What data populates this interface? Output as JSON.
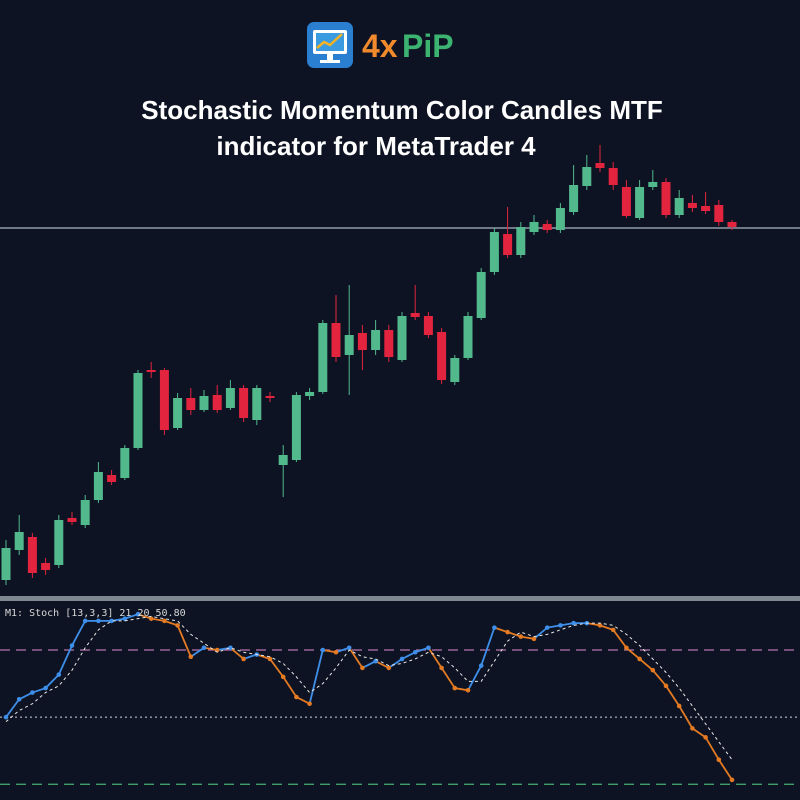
{
  "logo": {
    "prefix": "4x",
    "suffix": "PiP"
  },
  "title_lines": [
    "Stochastic Momentum Color Candles MTF",
    "indicator for MetaTrader 4"
  ],
  "chart_data": [
    {
      "type": "candlestick",
      "ylim": [
        0,
        230
      ],
      "up_color": "#52b98d",
      "down_color": "#e3243f",
      "hline": {
        "value": 181,
        "color": "#8f9aa8"
      },
      "open": [
        5,
        20,
        26.5,
        13.5,
        12.5,
        36,
        32.5,
        45,
        57.5,
        56,
        71,
        110,
        110,
        81,
        96,
        90,
        97.5,
        91,
        101,
        85,
        97,
        62.5,
        65,
        97,
        99,
        133.5,
        117.5,
        128.5,
        120,
        130,
        115,
        138.5,
        137,
        129,
        104,
        116,
        136,
        159,
        178,
        167.5,
        179,
        183,
        180,
        189,
        202,
        213.5,
        211,
        201.5,
        186,
        201.5,
        204,
        187.5,
        193.5,
        192,
        192.5,
        184
      ],
      "high": [
        25,
        37.5,
        28.5,
        16,
        37.5,
        39,
        47.5,
        64,
        60,
        72.5,
        110,
        114,
        111,
        98.5,
        101,
        100,
        102.5,
        105,
        102.5,
        102.5,
        99,
        72.5,
        99,
        101,
        135,
        147.5,
        152.5,
        132.5,
        135,
        132.5,
        139,
        152.5,
        139,
        131,
        117.5,
        139,
        161,
        181,
        191.5,
        184,
        187.5,
        185,
        193.5,
        212.5,
        217.5,
        222.5,
        214,
        205,
        205,
        210,
        206,
        200,
        197.5,
        199,
        195,
        185
      ],
      "low": [
        2.5,
        17.5,
        6,
        7.5,
        11,
        32.5,
        31,
        43.5,
        52.5,
        55,
        70,
        106,
        77.5,
        80,
        87.5,
        89,
        88.5,
        90,
        84,
        82.5,
        94,
        46.5,
        64,
        95,
        98,
        114,
        97.5,
        110,
        117.5,
        114,
        114,
        135,
        126,
        103,
        102.5,
        115,
        135,
        157.5,
        166,
        166,
        177.5,
        178.5,
        178.5,
        187.5,
        200,
        209,
        200,
        186,
        185,
        200,
        186,
        186,
        189,
        188,
        182,
        180
      ],
      "close": [
        21,
        29,
        8.5,
        10,
        35,
        34,
        45,
        59,
        54,
        71,
        108.5,
        109,
        80,
        96,
        90,
        97,
        90,
        101,
        86,
        101,
        96,
        67.5,
        97.5,
        99,
        133.5,
        116.5,
        127.5,
        120,
        130,
        116.5,
        137,
        136.5,
        127.5,
        105,
        116,
        137,
        159,
        179,
        167.5,
        181.5,
        184,
        180,
        191,
        202.5,
        211.5,
        211,
        202.5,
        187,
        201.5,
        204,
        187.5,
        196,
        191,
        189.5,
        184,
        181.5
      ]
    },
    {
      "type": "line",
      "label": "M1: Stoch [13,3,3] 21 20 50.80",
      "ylim": [
        13,
        101
      ],
      "levels": [
        {
          "value": 80,
          "color": "#b873b0",
          "dash": "10,6"
        },
        {
          "value": 50,
          "color": "#9aa0a8",
          "dash": "2,3"
        },
        {
          "value": 20,
          "color": "#3fa06a",
          "dash": "10,6"
        }
      ],
      "series": [
        {
          "up_color": "#3d8fea",
          "down_color": "#e47a22",
          "values": [
            50,
            58,
            61,
            63,
            69,
            82,
            93,
            93,
            93,
            94,
            96,
            94,
            93,
            91,
            77,
            81,
            80,
            81,
            76,
            78,
            76,
            68,
            59,
            56,
            80,
            79,
            81,
            72,
            75,
            72,
            76,
            79,
            81,
            72,
            63,
            62,
            73,
            90,
            88,
            86,
            85,
            90,
            91,
            92,
            92,
            91,
            89,
            81,
            76,
            71,
            64,
            55,
            45,
            41,
            31,
            22
          ]
        },
        {
          "color": "#e8e8e8",
          "dash": "3,3",
          "values": [
            48,
            53,
            56,
            61,
            64,
            71,
            81,
            89,
            93,
            93,
            94,
            95,
            94,
            93,
            87,
            83,
            79,
            81,
            79,
            78,
            77,
            74,
            68,
            61,
            65,
            72,
            80,
            77,
            76,
            73,
            74,
            76,
            79,
            77,
            72,
            66,
            66,
            75,
            84,
            88,
            86,
            87,
            89,
            91,
            92,
            92,
            91,
            87,
            82,
            76,
            70,
            63,
            55,
            47,
            39,
            31
          ]
        }
      ]
    }
  ]
}
